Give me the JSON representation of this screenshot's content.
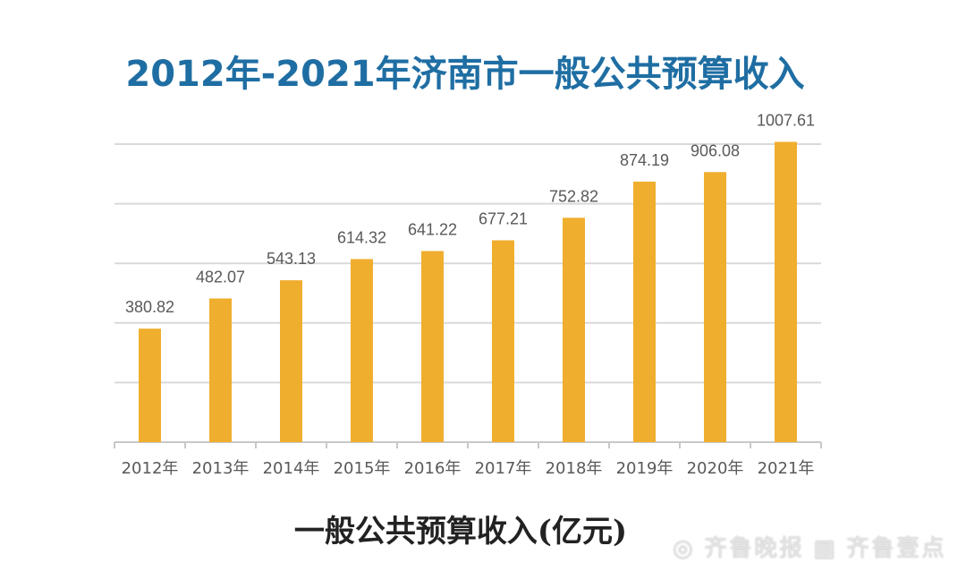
{
  "chart_data": {
    "type": "bar",
    "title": "2012年-2021年济南市一般公共预算收入",
    "subtitle": "一般公共预算收入(亿元)",
    "categories": [
      "2012年",
      "2013年",
      "2014年",
      "2015年",
      "2016年",
      "2017年",
      "2018年",
      "2019年",
      "2020年",
      "2021年"
    ],
    "values": [
      380.82,
      482.07,
      543.13,
      614.32,
      641.22,
      677.21,
      752.82,
      874.19,
      906.08,
      1007.61
    ],
    "data_labels": [
      "380.82",
      "482.07",
      "543.13",
      "614.32",
      "641.22",
      "677.21",
      "752.82",
      "874.19",
      "906.08",
      "1007.61"
    ],
    "xlabel": "",
    "ylabel": "",
    "ylim": [
      0,
      1000
    ],
    "gridlines": [
      200,
      400,
      600,
      800,
      1000
    ],
    "grid": true,
    "y_tick_labels_shown": false,
    "legend": "none",
    "colors": {
      "bar": "#f0ae2e",
      "title": "#1f6ea3",
      "grid": "#d9d9d9",
      "label": "#595959"
    }
  },
  "watermark": "齐鲁晚报 齐鲁壹点"
}
